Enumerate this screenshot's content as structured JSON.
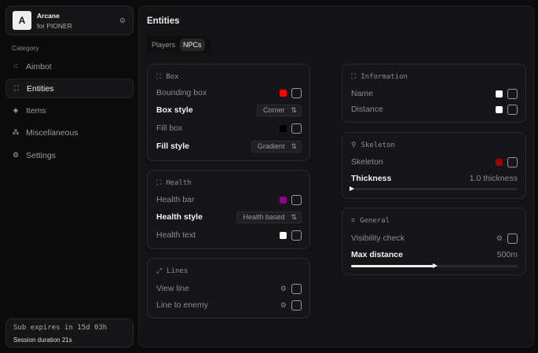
{
  "sidebar": {
    "app_name": "Arcane",
    "app_sub": "for PIONER",
    "logo_letter": "A",
    "category_label": "Category",
    "items": [
      {
        "label": "Aimbot",
        "icon": "crosshair-grid-icon"
      },
      {
        "label": "Entities",
        "icon": "entities-icon",
        "active": true
      },
      {
        "label": "Items",
        "icon": "cube-icon"
      },
      {
        "label": "Miscellaneous",
        "icon": "misc-icon"
      },
      {
        "label": "Settings",
        "icon": "gear-icon"
      }
    ],
    "sub_expires": "Sub expires in 15d 03h",
    "session": "Session duration 21s"
  },
  "main": {
    "title": "Entities",
    "tabs": [
      {
        "label": "Players"
      },
      {
        "label": "NPCs",
        "active": true
      }
    ],
    "box": {
      "title": "Box",
      "bounding_box": "Bounding box",
      "bounding_color": "#ff0000",
      "box_style": "Box style",
      "box_style_value": "Corner",
      "fill_box": "Fill box",
      "fill_color": "#000000",
      "fill_style": "Fill style",
      "fill_style_value": "Gradient"
    },
    "health": {
      "title": "Health",
      "health_bar": "Health bar",
      "health_bar_color": "#8b008b",
      "health_style": "Health style",
      "health_style_value": "Health based",
      "health_text": "Health text",
      "health_text_color": "#ffffff"
    },
    "lines": {
      "title": "Lines",
      "view_line": "View line",
      "line_to_enemy": "Line to enemy"
    },
    "information": {
      "title": "Information",
      "name": "Name",
      "name_color": "#ffffff",
      "distance": "Distance",
      "distance_color": "#ffffff"
    },
    "skeleton": {
      "title": "Skeleton",
      "skeleton": "Skeleton",
      "skeleton_color": "#a00000",
      "thickness": "Thickness",
      "thickness_value": "1.0 thickness",
      "thickness_fraction": 0
    },
    "general": {
      "title": "General",
      "visibility_check": "Visibility check",
      "max_distance": "Max distance",
      "max_distance_value": "500m",
      "max_distance_fraction": 0.5
    }
  }
}
